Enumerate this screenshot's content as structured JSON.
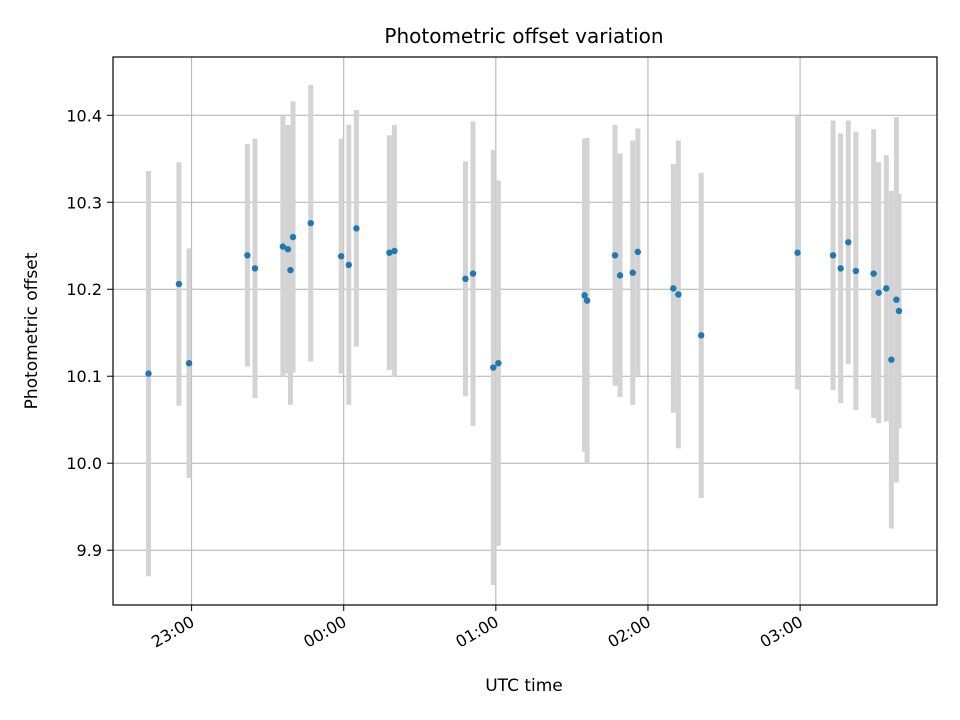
{
  "chart_data": {
    "type": "scatter",
    "title": "Photometric offset variation",
    "xlabel": "UTC time",
    "ylabel": "Photometric offset",
    "grid": true,
    "x_tick_labels": [
      "23:00",
      "00:00",
      "01:00",
      "02:00",
      "03:00"
    ],
    "x_tick_times": [
      "22:59",
      "23:59",
      "00:59",
      "01:59",
      "02:59"
    ],
    "xlim": [
      "22:28",
      "03:53"
    ],
    "y_ticks": [
      9.9,
      10.0,
      10.1,
      10.2,
      10.3,
      10.4
    ],
    "y_tick_labels": [
      "9.9",
      "10.0",
      "10.1",
      "10.2",
      "10.3",
      "10.4"
    ],
    "ylim": [
      9.837,
      10.467
    ],
    "colors": {
      "point": "#1f77b4",
      "errorbar": "#d3d3d3",
      "grid": "#b0b0b0"
    },
    "points": [
      {
        "x": "22:42",
        "y": 10.103,
        "err": 0.233
      },
      {
        "x": "22:54",
        "y": 10.206,
        "err": 0.14
      },
      {
        "x": "22:58",
        "y": 10.115,
        "err": 0.132
      },
      {
        "x": "23:21",
        "y": 10.239,
        "err": 0.128
      },
      {
        "x": "23:24",
        "y": 10.224,
        "err": 0.149
      },
      {
        "x": "23:35",
        "y": 10.249,
        "err": 0.15
      },
      {
        "x": "23:37",
        "y": 10.246,
        "err": 0.143
      },
      {
        "x": "23:38",
        "y": 10.222,
        "err": 0.155
      },
      {
        "x": "23:39",
        "y": 10.26,
        "err": 0.156
      },
      {
        "x": "23:46",
        "y": 10.276,
        "err": 0.159
      },
      {
        "x": "23:58",
        "y": 10.238,
        "err": 0.135
      },
      {
        "x": "00:01",
        "y": 10.228,
        "err": 0.161
      },
      {
        "x": "00:04",
        "y": 10.27,
        "err": 0.136
      },
      {
        "x": "00:17",
        "y": 10.242,
        "err": 0.135
      },
      {
        "x": "00:19",
        "y": 10.244,
        "err": 0.145
      },
      {
        "x": "00:47",
        "y": 10.212,
        "err": 0.135
      },
      {
        "x": "00:50",
        "y": 10.218,
        "err": 0.175
      },
      {
        "x": "00:58",
        "y": 10.11,
        "err": 0.25
      },
      {
        "x": "01:00",
        "y": 10.115,
        "err": 0.21
      },
      {
        "x": "01:34",
        "y": 10.193,
        "err": 0.18
      },
      {
        "x": "01:35",
        "y": 10.187,
        "err": 0.187
      },
      {
        "x": "01:46",
        "y": 10.239,
        "err": 0.15
      },
      {
        "x": "01:48",
        "y": 10.216,
        "err": 0.14
      },
      {
        "x": "01:53",
        "y": 10.219,
        "err": 0.152
      },
      {
        "x": "01:55",
        "y": 10.243,
        "err": 0.142
      },
      {
        "x": "02:09",
        "y": 10.201,
        "err": 0.143
      },
      {
        "x": "02:11",
        "y": 10.194,
        "err": 0.177
      },
      {
        "x": "02:20",
        "y": 10.147,
        "err": 0.187
      },
      {
        "x": "02:58",
        "y": 10.242,
        "err": 0.157
      },
      {
        "x": "03:12",
        "y": 10.239,
        "err": 0.155
      },
      {
        "x": "03:15",
        "y": 10.224,
        "err": 0.155
      },
      {
        "x": "03:18",
        "y": 10.254,
        "err": 0.14
      },
      {
        "x": "03:21",
        "y": 10.221,
        "err": 0.16
      },
      {
        "x": "03:28",
        "y": 10.218,
        "err": 0.166
      },
      {
        "x": "03:30",
        "y": 10.196,
        "err": 0.15
      },
      {
        "x": "03:33",
        "y": 10.201,
        "err": 0.153
      },
      {
        "x": "03:35",
        "y": 10.119,
        "err": 0.194
      },
      {
        "x": "03:37",
        "y": 10.188,
        "err": 0.21
      },
      {
        "x": "03:38",
        "y": 10.175,
        "err": 0.135
      }
    ]
  }
}
